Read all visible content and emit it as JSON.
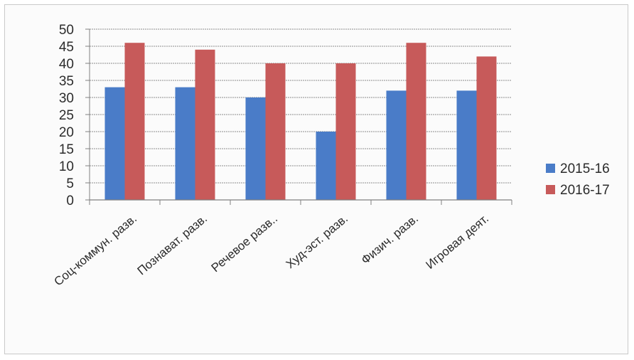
{
  "chart_data": {
    "type": "bar",
    "categories": [
      "Соц-коммун. разв.",
      "Познават. разв.",
      "Речевое разв..",
      "Худ-эст. разв.",
      "Физич. разв.",
      "Игровая деят."
    ],
    "series": [
      {
        "name": "2015-16",
        "color": "#4a7cc8",
        "values": [
          33,
          33,
          30,
          20,
          32,
          32
        ]
      },
      {
        "name": "2016-17",
        "color": "#c75a5a",
        "values": [
          46,
          44,
          40,
          40,
          46,
          42
        ]
      }
    ],
    "y_ticks": [
      "0",
      "5",
      "10",
      "15",
      "20",
      "25",
      "30",
      "35",
      "40",
      "45",
      "50"
    ],
    "ylim": [
      0,
      50
    ],
    "grid": true,
    "legend_position": "right"
  }
}
